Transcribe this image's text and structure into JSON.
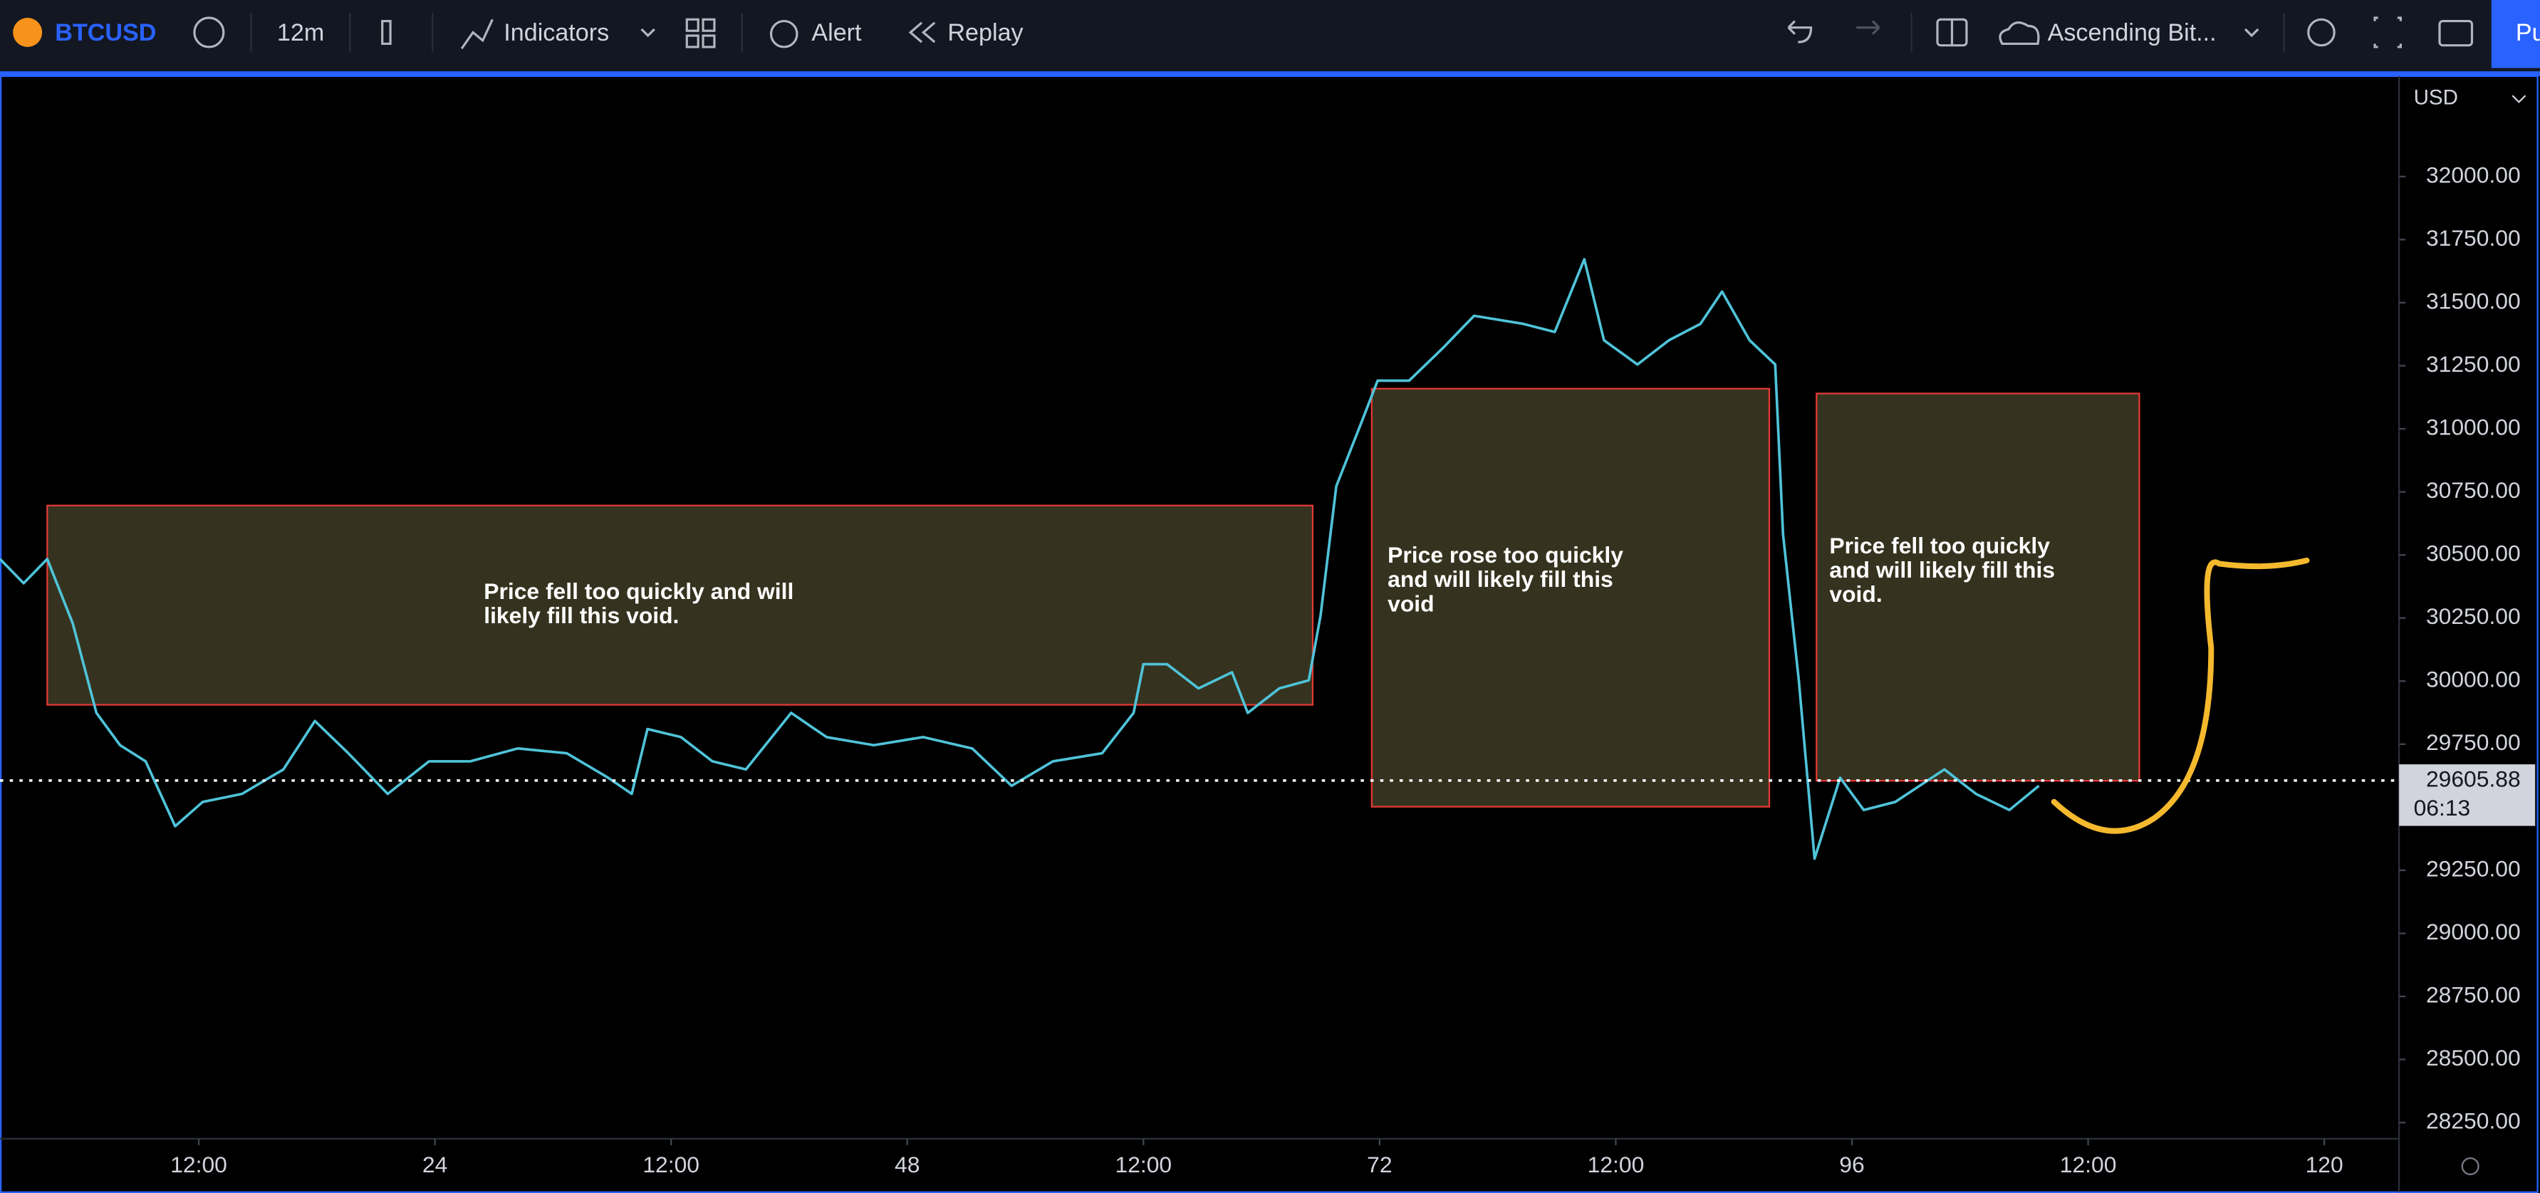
{
  "toolbar": {
    "symbol": "BTCUSD",
    "interval": "12m",
    "indicators": "Indicators",
    "alert": "Alert",
    "replay": "Replay",
    "layout": "Ascending Bit...",
    "publish": "Pu"
  },
  "chart_data": {
    "type": "line",
    "currency": "USD",
    "color": "#4fc3d9",
    "xlim": [
      1.9,
      123.8
    ],
    "ylim": [
      28186,
      32398
    ],
    "xticks": [
      {
        "value": 12,
        "label": "12:00"
      },
      24,
      {
        "value": 36,
        "label": "12:00"
      },
      48,
      {
        "value": 60,
        "label": "12:00"
      },
      72,
      {
        "value": 84,
        "label": "12:00"
      },
      96,
      {
        "value": 108,
        "label": "12:00"
      },
      120
    ],
    "yticks": [
      {
        "value": 28250,
        "label": "28250.00"
      },
      {
        "value": 28500,
        "label": "28500.00"
      },
      {
        "value": 28750,
        "label": "28750.00"
      },
      {
        "value": 29000,
        "label": "29000.00"
      },
      {
        "value": 29250,
        "label": "29250.00"
      },
      {
        "value": 29750,
        "label": "29750.00"
      },
      {
        "value": 30000,
        "label": "30000.00"
      },
      {
        "value": 30250,
        "label": "30250.00"
      },
      {
        "value": 30500,
        "label": "30500.00"
      },
      {
        "value": 30750,
        "label": "30750.00"
      },
      {
        "value": 31000,
        "label": "31000.00"
      },
      {
        "value": 31250,
        "label": "31250.00"
      },
      {
        "value": 31500,
        "label": "31500.00"
      },
      {
        "value": 31750,
        "label": "31750.00"
      },
      {
        "value": 32000,
        "label": "32000.00"
      }
    ],
    "x": [
      1.9,
      3.1,
      4.3,
      5.6,
      6.8,
      8.0,
      9.3,
      10.8,
      12.2,
      14.2,
      16.3,
      17.9,
      19.6,
      21.6,
      23.7,
      25.8,
      28.2,
      30.7,
      32.8,
      34.0,
      34.8,
      36.5,
      38.1,
      39.8,
      42.1,
      43.9,
      46.3,
      48.8,
      51.3,
      53.3,
      55.4,
      57.9,
      59.5,
      60.0,
      61.2,
      62.8,
      64.5,
      65.3,
      66.9,
      68.4,
      69.0,
      69.8,
      71.1,
      71.9,
      73.5,
      75.2,
      76.8,
      79.3,
      80.9,
      82.4,
      83.4,
      85.1,
      86.7,
      88.3,
      89.4,
      90.8,
      92.1,
      92.5,
      93.3,
      94.1,
      95.4,
      96.6,
      98.2,
      100.7,
      102.3,
      104.0,
      105.5
    ],
    "values": [
      30484,
      30388,
      30484,
      30228,
      29874,
      29746,
      29682,
      29425,
      29521,
      29553,
      29650,
      29842,
      29714,
      29553,
      29682,
      29682,
      29733,
      29714,
      29617,
      29553,
      29810,
      29778,
      29682,
      29650,
      29874,
      29778,
      29746,
      29778,
      29733,
      29585,
      29682,
      29714,
      29874,
      30067,
      30067,
      29971,
      30035,
      29874,
      29971,
      30003,
      30260,
      30773,
      31030,
      31191,
      31191,
      31319,
      31448,
      31416,
      31384,
      31672,
      31351,
      31255,
      31351,
      31416,
      31544,
      31351,
      31255,
      30581,
      30003,
      29296,
      29617,
      29489,
      29521,
      29650,
      29553,
      29489,
      29585
    ],
    "last_price": 29605.88,
    "countdown": "06:13",
    "annotations": [
      {
        "x": [
          4.3,
          68.6
        ],
        "y": [
          29906,
          30696
        ],
        "lines": [
          "Price fell too quickly and will",
          "likely fill this void."
        ]
      },
      {
        "x": [
          71.6,
          91.8
        ],
        "y": [
          29502,
          31159
        ],
        "lines": [
          "Price rose too quickly",
          "and will likely fill this",
          "void"
        ]
      },
      {
        "x": [
          94.2,
          110.6
        ],
        "y": [
          29605,
          31140
        ],
        "lines": [
          "Price fell too quickly",
          "and will likely fill this",
          "void."
        ]
      }
    ]
  }
}
